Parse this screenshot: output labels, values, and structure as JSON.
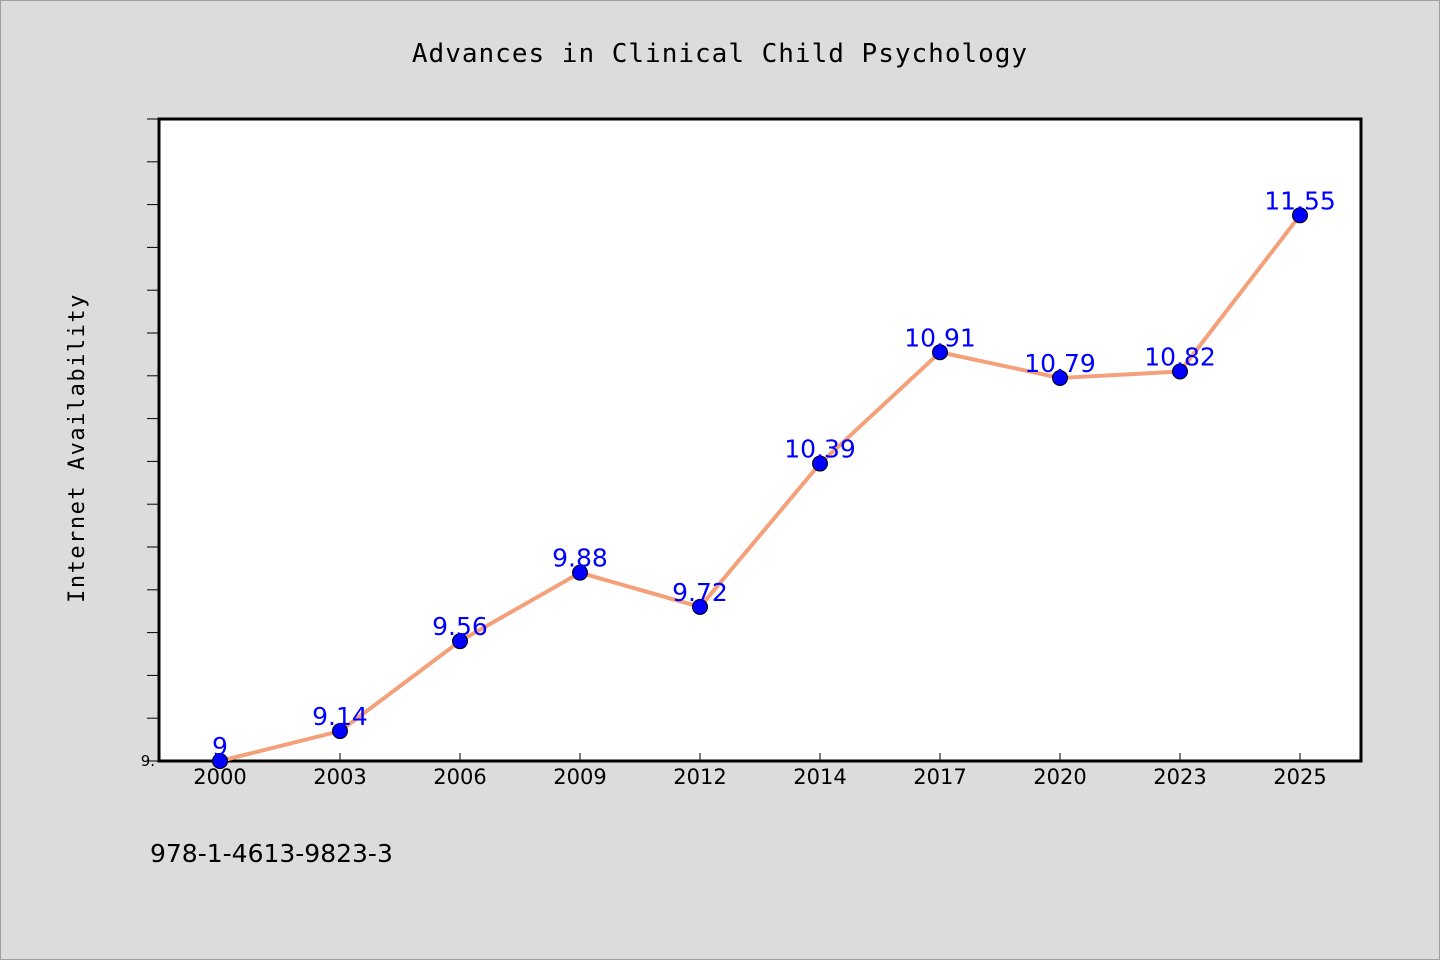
{
  "chart_data": {
    "type": "line",
    "title": "Advances in Clinical Child Psychology",
    "xlabel": "",
    "ylabel": "Internet Availability",
    "categories": [
      "2000",
      "2003",
      "2006",
      "2009",
      "2012",
      "2014",
      "2017",
      "2020",
      "2023",
      "2025"
    ],
    "series": [
      {
        "values": [
          9,
          9.14,
          9.56,
          9.88,
          9.72,
          10.39,
          10.91,
          10.79,
          10.82,
          11.55
        ],
        "labels": [
          "9",
          "9.14",
          "9.56",
          "9.88",
          "9.72",
          "10.39",
          "10.91",
          "10.79",
          "10.82",
          "11.55"
        ],
        "color": "#f4a07a",
        "marker_color": "#0000ff"
      }
    ],
    "ylim": [
      9,
      12
    ],
    "y_tick_labels": [
      "9."
    ],
    "grid": false,
    "legend": "none"
  },
  "footnote": "978-1-4613-9823-3",
  "colors": {
    "background": "#dcdcdc",
    "plot_background": "#ffffff",
    "line": "#f4a07a",
    "marker": "#0000ff",
    "data_label": "#0000ff"
  }
}
